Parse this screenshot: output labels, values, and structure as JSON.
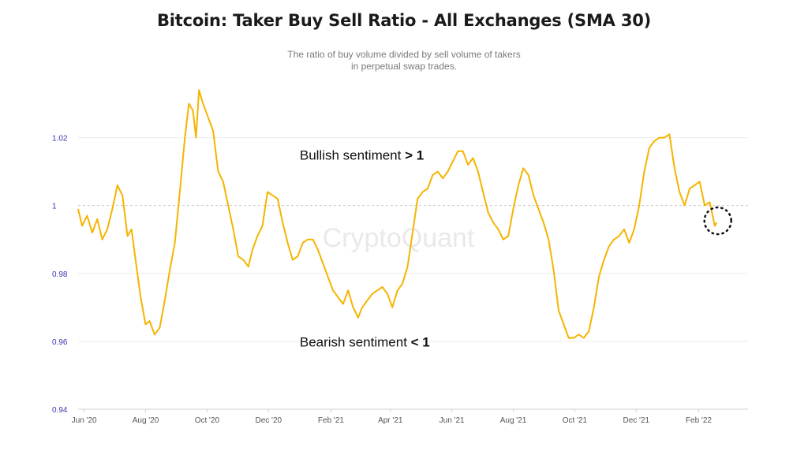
{
  "chart_data": {
    "type": "line",
    "title": "Bitcoin: Taker Buy Sell Ratio - All Exchanges (SMA 30)",
    "subtitle_lines": [
      "The ratio of buy volume divided by sell volume of takers",
      "in perpetual swap trades."
    ],
    "watermark": "CryptoQuant",
    "ylim": [
      0.94,
      1.035
    ],
    "yticks": [
      {
        "value": 0.94,
        "label": "0.94"
      },
      {
        "value": 0.96,
        "label": "0.96"
      },
      {
        "value": 0.98,
        "label": "0.98"
      },
      {
        "value": 1.0,
        "label": "1"
      },
      {
        "value": 1.02,
        "label": "1.02"
      }
    ],
    "reference_line": 1.0,
    "xlim": [
      "2020-05-26",
      "2022-03-22"
    ],
    "xticks": [
      {
        "date": "2020-06-01",
        "label": "Jun '20"
      },
      {
        "date": "2020-08-01",
        "label": "Aug '20"
      },
      {
        "date": "2020-10-01",
        "label": "Oct '20"
      },
      {
        "date": "2020-12-01",
        "label": "Dec '20"
      },
      {
        "date": "2021-02-01",
        "label": "Feb '21"
      },
      {
        "date": "2021-04-01",
        "label": "Apr '21"
      },
      {
        "date": "2021-06-01",
        "label": "Jun '21"
      },
      {
        "date": "2021-08-01",
        "label": "Aug '21"
      },
      {
        "date": "2021-10-01",
        "label": "Oct '21"
      },
      {
        "date": "2021-12-01",
        "label": "Dec '21"
      },
      {
        "date": "2022-02-01",
        "label": "Feb '22"
      }
    ],
    "series": [
      {
        "color": "#f5b400",
        "points": [
          [
            "2020-05-26",
            0.999
          ],
          [
            "2020-05-30",
            0.994
          ],
          [
            "2020-06-04",
            0.997
          ],
          [
            "2020-06-09",
            0.992
          ],
          [
            "2020-06-14",
            0.996
          ],
          [
            "2020-06-19",
            0.99
          ],
          [
            "2020-06-24",
            0.993
          ],
          [
            "2020-06-29",
            0.999
          ],
          [
            "2020-07-04",
            1.006
          ],
          [
            "2020-07-09",
            1.003
          ],
          [
            "2020-07-14",
            0.991
          ],
          [
            "2020-07-18",
            0.993
          ],
          [
            "2020-07-22",
            0.984
          ],
          [
            "2020-07-27",
            0.973
          ],
          [
            "2020-08-01",
            0.965
          ],
          [
            "2020-08-05",
            0.966
          ],
          [
            "2020-08-10",
            0.962
          ],
          [
            "2020-08-15",
            0.964
          ],
          [
            "2020-08-20",
            0.972
          ],
          [
            "2020-08-25",
            0.981
          ],
          [
            "2020-08-30",
            0.989
          ],
          [
            "2020-09-04",
            1.004
          ],
          [
            "2020-09-09",
            1.02
          ],
          [
            "2020-09-13",
            1.03
          ],
          [
            "2020-09-17",
            1.028
          ],
          [
            "2020-09-20",
            1.02
          ],
          [
            "2020-09-23",
            1.034
          ],
          [
            "2020-09-27",
            1.03
          ],
          [
            "2020-10-02",
            1.026
          ],
          [
            "2020-10-07",
            1.022
          ],
          [
            "2020-10-12",
            1.01
          ],
          [
            "2020-10-17",
            1.007
          ],
          [
            "2020-10-22",
            1.0
          ],
          [
            "2020-10-27",
            0.993
          ],
          [
            "2020-11-01",
            0.985
          ],
          [
            "2020-11-06",
            0.984
          ],
          [
            "2020-11-11",
            0.982
          ],
          [
            "2020-11-15",
            0.987
          ],
          [
            "2020-11-20",
            0.991
          ],
          [
            "2020-11-25",
            0.994
          ],
          [
            "2020-11-30",
            1.004
          ],
          [
            "2020-12-05",
            1.003
          ],
          [
            "2020-12-10",
            1.002
          ],
          [
            "2020-12-15",
            0.995
          ],
          [
            "2020-12-20",
            0.989
          ],
          [
            "2020-12-25",
            0.984
          ],
          [
            "2020-12-30",
            0.985
          ],
          [
            "2021-01-04",
            0.989
          ],
          [
            "2021-01-09",
            0.99
          ],
          [
            "2021-01-14",
            0.99
          ],
          [
            "2021-01-19",
            0.987
          ],
          [
            "2021-01-24",
            0.983
          ],
          [
            "2021-01-29",
            0.979
          ],
          [
            "2021-02-03",
            0.975
          ],
          [
            "2021-02-08",
            0.973
          ],
          [
            "2021-02-13",
            0.971
          ],
          [
            "2021-02-18",
            0.975
          ],
          [
            "2021-02-23",
            0.97
          ],
          [
            "2021-02-28",
            0.967
          ],
          [
            "2021-03-04",
            0.97
          ],
          [
            "2021-03-09",
            0.972
          ],
          [
            "2021-03-14",
            0.974
          ],
          [
            "2021-03-19",
            0.975
          ],
          [
            "2021-03-24",
            0.976
          ],
          [
            "2021-03-29",
            0.974
          ],
          [
            "2021-04-03",
            0.97
          ],
          [
            "2021-04-08",
            0.975
          ],
          [
            "2021-04-13",
            0.977
          ],
          [
            "2021-04-18",
            0.982
          ],
          [
            "2021-04-23",
            0.992
          ],
          [
            "2021-04-28",
            1.002
          ],
          [
            "2021-05-03",
            1.004
          ],
          [
            "2021-05-08",
            1.005
          ],
          [
            "2021-05-13",
            1.009
          ],
          [
            "2021-05-18",
            1.01
          ],
          [
            "2021-05-23",
            1.008
          ],
          [
            "2021-05-28",
            1.01
          ],
          [
            "2021-06-02",
            1.013
          ],
          [
            "2021-06-07",
            1.016
          ],
          [
            "2021-06-12",
            1.016
          ],
          [
            "2021-06-17",
            1.012
          ],
          [
            "2021-06-22",
            1.014
          ],
          [
            "2021-06-27",
            1.01
          ],
          [
            "2021-07-02",
            1.004
          ],
          [
            "2021-07-07",
            0.998
          ],
          [
            "2021-07-12",
            0.995
          ],
          [
            "2021-07-17",
            0.993
          ],
          [
            "2021-07-22",
            0.99
          ],
          [
            "2021-07-27",
            0.991
          ],
          [
            "2021-08-01",
            0.999
          ],
          [
            "2021-08-06",
            1.006
          ],
          [
            "2021-08-11",
            1.011
          ],
          [
            "2021-08-16",
            1.009
          ],
          [
            "2021-08-21",
            1.003
          ],
          [
            "2021-08-26",
            0.999
          ],
          [
            "2021-08-31",
            0.995
          ],
          [
            "2021-09-05",
            0.99
          ],
          [
            "2021-09-10",
            0.981
          ],
          [
            "2021-09-15",
            0.969
          ],
          [
            "2021-09-20",
            0.965
          ],
          [
            "2021-09-25",
            0.961
          ],
          [
            "2021-09-30",
            0.961
          ],
          [
            "2021-10-05",
            0.962
          ],
          [
            "2021-10-10",
            0.961
          ],
          [
            "2021-10-15",
            0.963
          ],
          [
            "2021-10-20",
            0.97
          ],
          [
            "2021-10-25",
            0.979
          ],
          [
            "2021-10-30",
            0.984
          ],
          [
            "2021-11-04",
            0.988
          ],
          [
            "2021-11-09",
            0.99
          ],
          [
            "2021-11-14",
            0.991
          ],
          [
            "2021-11-19",
            0.993
          ],
          [
            "2021-11-24",
            0.989
          ],
          [
            "2021-11-29",
            0.993
          ],
          [
            "2021-12-04",
            1.0
          ],
          [
            "2021-12-09",
            1.01
          ],
          [
            "2021-12-14",
            1.017
          ],
          [
            "2021-12-19",
            1.019
          ],
          [
            "2021-12-24",
            1.02
          ],
          [
            "2021-12-29",
            1.02
          ],
          [
            "2022-01-03",
            1.021
          ],
          [
            "2022-01-08",
            1.011
          ],
          [
            "2022-01-13",
            1.004
          ],
          [
            "2022-01-18",
            1.0
          ],
          [
            "2022-01-23",
            1.005
          ],
          [
            "2022-01-28",
            1.006
          ],
          [
            "2022-02-02",
            1.007
          ],
          [
            "2022-02-07",
            1.0
          ],
          [
            "2022-02-12",
            1.001
          ],
          [
            "2022-02-17",
            0.994
          ],
          [
            "2022-02-19",
            0.995
          ]
        ]
      }
    ],
    "annotations": [
      {
        "text": "Bullish sentiment",
        "bold": "> 1",
        "x": "2021-01-01",
        "y": 1.0135
      },
      {
        "text": "Bearish sentiment",
        "bold": "< 1",
        "x": "2021-01-01",
        "y": 0.9585
      }
    ],
    "highlight_circle": {
      "x": "2022-02-20",
      "y": 0.9955
    },
    "grid": "horizontal",
    "legend": "none"
  }
}
